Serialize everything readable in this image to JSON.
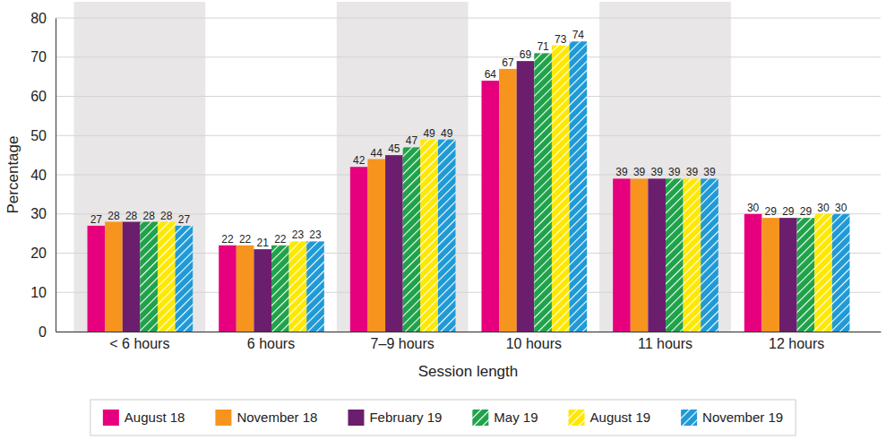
{
  "chart_data": {
    "type": "bar",
    "x_label": "Session length",
    "y_label": "Percentage",
    "categories": [
      "< 6 hours",
      "6 hours",
      "7–9 hours",
      "10 hours",
      "11 hours",
      "12 hours"
    ],
    "series": [
      {
        "name": "August 18",
        "color": "#e6007e",
        "values": [
          27,
          22,
          42,
          64,
          39,
          30
        ]
      },
      {
        "name": "November 18",
        "color": "#f7941d",
        "values": [
          28,
          22,
          44,
          67,
          39,
          29
        ]
      },
      {
        "name": "February 19",
        "color": "#6b1e6e",
        "values": [
          28,
          21,
          45,
          69,
          39,
          29
        ]
      },
      {
        "name": "May 19",
        "color": "#1fa24a",
        "values": [
          28,
          22,
          47,
          71,
          39,
          29
        ]
      },
      {
        "name": "August 19",
        "color": "#ffe800",
        "values": [
          28,
          23,
          49,
          73,
          39,
          30
        ]
      },
      {
        "name": "November 19",
        "color": "#1f9ad6",
        "values": [
          27,
          23,
          49,
          74,
          39,
          30
        ]
      }
    ],
    "ylim": [
      0,
      80
    ],
    "yticks": [
      0,
      10,
      20,
      30,
      40,
      50,
      60,
      70,
      80
    ],
    "grid": true,
    "legend": "bottom",
    "data_labels": true
  }
}
